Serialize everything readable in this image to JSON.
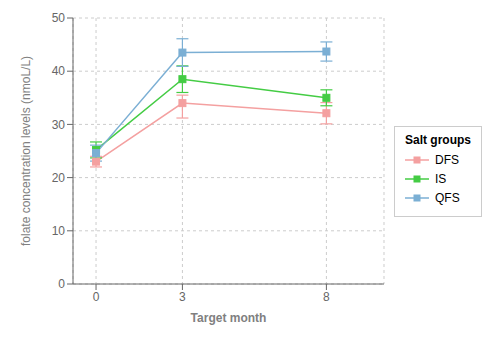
{
  "chart_data": {
    "type": "line",
    "x_label": "Target month",
    "y_label": "folate concentration levels (nmoL/L)",
    "legend_title": "Salt groups",
    "x": [
      0,
      3,
      8
    ],
    "series": [
      {
        "name": "DFS",
        "color": "#F4A0A0",
        "marker": "square",
        "values": [
          23.0,
          34.0,
          32.1
        ],
        "yerr_lo": [
          1.0,
          2.8,
          2.0
        ],
        "yerr_hi": [
          1.0,
          1.5,
          2.0
        ]
      },
      {
        "name": "IS",
        "color": "#44CC44",
        "marker": "square",
        "values": [
          25.2,
          38.5,
          35.0
        ],
        "yerr_lo": [
          1.5,
          2.5,
          1.5
        ],
        "yerr_hi": [
          1.5,
          2.5,
          1.5
        ]
      },
      {
        "name": "QFS",
        "color": "#7BAFD4",
        "marker": "square",
        "values": [
          24.6,
          43.5,
          43.7
        ],
        "yerr_lo": [
          1.5,
          2.6,
          1.8
        ],
        "yerr_hi": [
          1.5,
          2.6,
          1.8
        ]
      }
    ],
    "xlim": [
      -0.8,
      10.0
    ],
    "xticks": [
      0,
      3,
      8
    ],
    "ylim": [
      0,
      50
    ],
    "yticks": [
      0,
      10,
      20,
      30,
      40,
      50
    ],
    "grid": true,
    "legend": "right"
  }
}
